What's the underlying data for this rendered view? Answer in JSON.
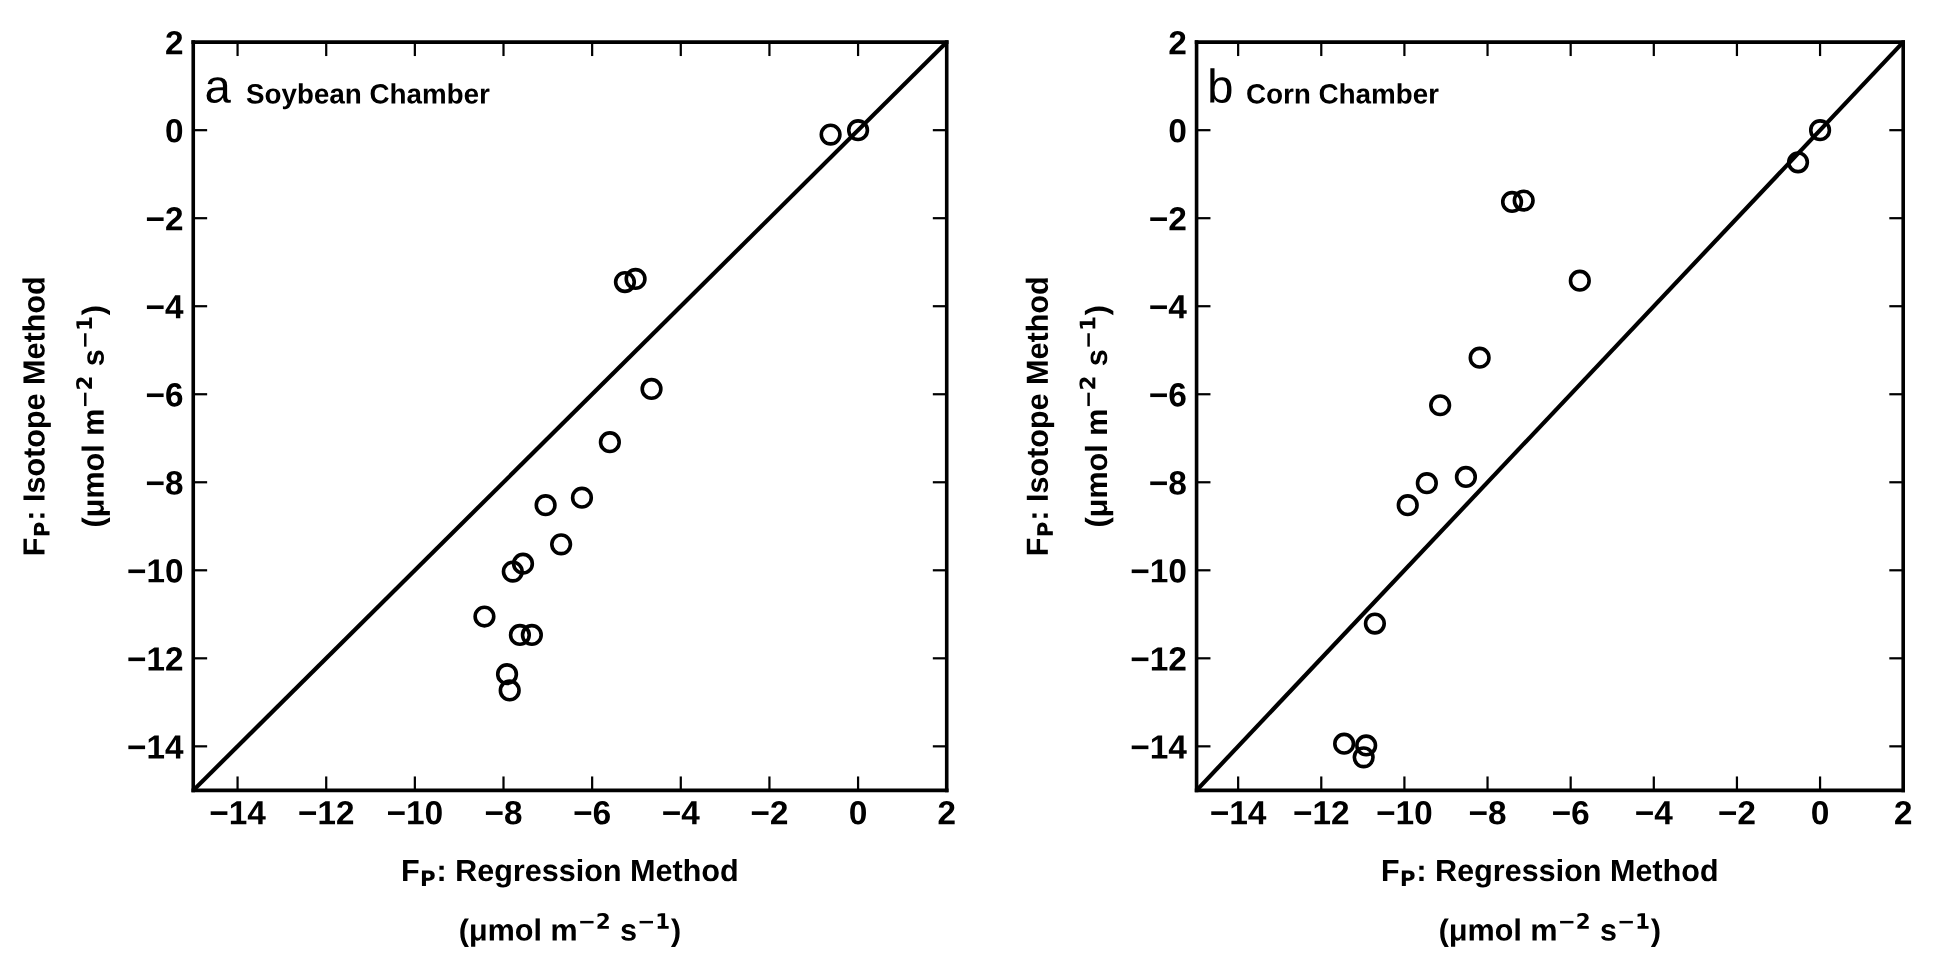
{
  "chart_data": [
    {
      "type": "scatter",
      "xlabel": "F$_{P}$: Regression Method\n(μmol m$^{−2}$ s$^{−1}$)",
      "ylabel": "F$_{P}$: Isotope Method\n(μmol m$^{−2}$ s$^{−1}$)",
      "annotations": [
        "a",
        "Soybean Chamber"
      ],
      "series": [
        {
          "color": "#000000",
          "marker": "circle",
          "x": [
            -0.62,
            0,
            -5.26,
            -5.02,
            -4.66,
            -5.6,
            -7.05,
            -6.23,
            -6.7,
            -7.79,
            -7.56,
            -8.43,
            -7.63,
            -7.36,
            -7.92,
            -7.86
          ],
          "values": [
            -0.1,
            0,
            -3.45,
            -3.38,
            -5.88,
            -7.09,
            -8.52,
            -8.35,
            -9.41,
            -10.03,
            -9.85,
            -11.05,
            -11.47,
            -11.47,
            -12.36,
            -12.73
          ]
        },
        {
          "type": "line",
          "color": "#000000",
          "line_style": "solid",
          "x": [
            -15,
            2
          ],
          "values": [
            -15,
            2
          ]
        }
      ],
      "xlim": [
        -15,
        2
      ],
      "ylim": [
        -15,
        2
      ],
      "xticks": [
        -14,
        -12,
        -10,
        -8,
        -6,
        -4,
        -2,
        0,
        2
      ],
      "yticks": [
        -14,
        -12,
        -10,
        -8,
        -6,
        -4,
        -2,
        0,
        2
      ],
      "grid": false,
      "legend": false
    },
    {
      "type": "scatter",
      "xlabel": "F$_{P}$: Regression Method\n(μmol m$^{−2}$ s$^{−1}$)",
      "ylabel": "F$_{P}$: Isotope Method\n(μmol m$^{−2}$ s$^{−1}$)",
      "annotations": [
        "b",
        "Corn Chamber"
      ],
      "series": [
        {
          "color": "#000000",
          "marker": "circle",
          "x": [
            0,
            -0.53,
            -7.41,
            -7.13,
            -5.78,
            -8.19,
            -9.14,
            -9.46,
            -8.52,
            -9.92,
            -10.71,
            -11.45,
            -10.92,
            -10.98
          ],
          "values": [
            0,
            -0.73,
            -1.63,
            -1.6,
            -3.42,
            -5.17,
            -6.25,
            -8.02,
            -7.88,
            -8.52,
            -11.21,
            -13.94,
            -13.98,
            -14.25
          ]
        },
        {
          "type": "line",
          "color": "#000000",
          "line_style": "solid",
          "x": [
            -15,
            2
          ],
          "values": [
            -15,
            2
          ]
        }
      ],
      "xlim": [
        -15,
        2
      ],
      "ylim": [
        -15,
        2
      ],
      "xticks": [
        -14,
        -12,
        -10,
        -8,
        -6,
        -4,
        -2,
        0,
        2
      ],
      "yticks": [
        -14,
        -12,
        -10,
        -8,
        -6,
        -4,
        -2,
        0,
        2
      ],
      "grid": false,
      "legend": false
    }
  ]
}
